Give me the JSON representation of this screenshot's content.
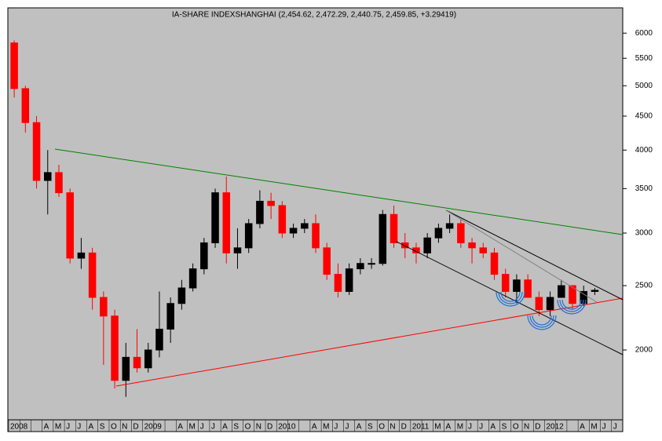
{
  "chart_data": {
    "type": "candlestick",
    "title": "IA-SHARE INDEXSHANGHAI (2,454.62, 2,472.29, 2,440.75, 2,459.85, +3.29419)",
    "categories": [
      "2008",
      null,
      null,
      "A",
      "M",
      "J",
      "J",
      "A",
      "S",
      "O",
      "N",
      "D",
      "2009",
      null,
      null,
      "A",
      "M",
      "J",
      "J",
      "A",
      "S",
      "O",
      "N",
      "D",
      "2010",
      null,
      null,
      "A",
      "M",
      "J",
      "J",
      "A",
      "S",
      "O",
      "N",
      "D",
      "2011",
      null,
      "M",
      "A",
      "M",
      "J",
      "J",
      "A",
      "S",
      "O",
      "N",
      "D",
      "2012",
      null,
      null,
      "A",
      "M",
      "J",
      "J"
    ],
    "open": [
      5800,
      4950,
      4400,
      3600,
      3700,
      3450,
      2750,
      2800,
      2400,
      2250,
      1800,
      1950,
      1880,
      2000,
      2150,
      2350,
      2480,
      2650,
      2900,
      3450,
      2800,
      2850,
      3100,
      3350,
      3300,
      3000,
      3050,
      3100,
      2850,
      2600,
      2450,
      2650,
      2700,
      2700,
      3200,
      2900,
      2850,
      2800,
      2950,
      3050,
      3100,
      2900,
      2850,
      2800,
      2600,
      2450,
      2550,
      2400,
      2300,
      2400,
      2500,
      2350,
      2450,
      null,
      null
    ],
    "high": [
      5850,
      5000,
      4500,
      4000,
      3800,
      3500,
      2950,
      2850,
      2450,
      2300,
      2050,
      2150,
      2050,
      2450,
      2400,
      2550,
      2700,
      2950,
      3500,
      3650,
      3050,
      3150,
      3480,
      3450,
      3350,
      3100,
      3150,
      3200,
      2900,
      2700,
      2700,
      2750,
      2750,
      3250,
      3300,
      3000,
      2900,
      3000,
      3100,
      3200,
      3150,
      2950,
      2900,
      2850,
      2650,
      2600,
      2600,
      2450,
      2450,
      2550,
      2500,
      2500,
      2480,
      null,
      null
    ],
    "low": [
      4800,
      4250,
      3500,
      3200,
      3400,
      2700,
      2650,
      2300,
      1900,
      1750,
      1700,
      1850,
      1850,
      1950,
      2050,
      2300,
      2450,
      2600,
      2850,
      2700,
      2650,
      2800,
      3050,
      3150,
      2950,
      2950,
      3000,
      2800,
      2550,
      2400,
      2420,
      2600,
      2650,
      2680,
      2850,
      2750,
      2700,
      2750,
      2900,
      3000,
      2850,
      2700,
      2750,
      2550,
      2400,
      2350,
      2400,
      2250,
      2250,
      2400,
      2300,
      2330,
      2420,
      null,
      null
    ],
    "close": [
      4950,
      4400,
      3600,
      3700,
      3450,
      2750,
      2800,
      2400,
      2250,
      1800,
      1950,
      1880,
      2000,
      2150,
      2350,
      2480,
      2650,
      2900,
      3450,
      2800,
      2850,
      3100,
      3350,
      3300,
      3000,
      3050,
      3100,
      2850,
      2600,
      2450,
      2650,
      2700,
      2700,
      3200,
      2900,
      2850,
      2800,
      2950,
      3050,
      3100,
      2900,
      2850,
      2800,
      2600,
      2450,
      2550,
      2400,
      2300,
      2400,
      2500,
      2350,
      2450,
      2460,
      null,
      null
    ],
    "up_color": "#000000",
    "down_color": "#ff0000",
    "log_scale": true,
    "ylim": [
      1570,
      6550
    ],
    "yticks": [
      2000,
      2500,
      3000,
      3500,
      4000,
      4500,
      5000,
      5500,
      6000
    ]
  }
}
